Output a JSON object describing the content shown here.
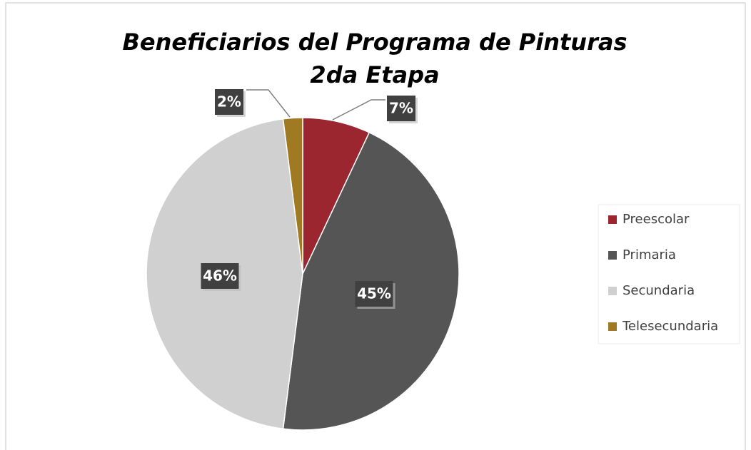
{
  "chart_data": {
    "type": "pie",
    "title": "Beneficiarios del Programa de Pinturas 2da Etapa",
    "categories": [
      "Preescolar",
      "Primaria",
      "Secundaria",
      "Telesecundaria"
    ],
    "values": [
      7,
      45,
      46,
      2
    ],
    "value_labels": [
      "7%",
      "45%",
      "46%",
      "2%"
    ],
    "colors": [
      "#9b2630",
      "#555556",
      "#d0d0d0",
      "#a07a22"
    ],
    "legend": "right"
  }
}
